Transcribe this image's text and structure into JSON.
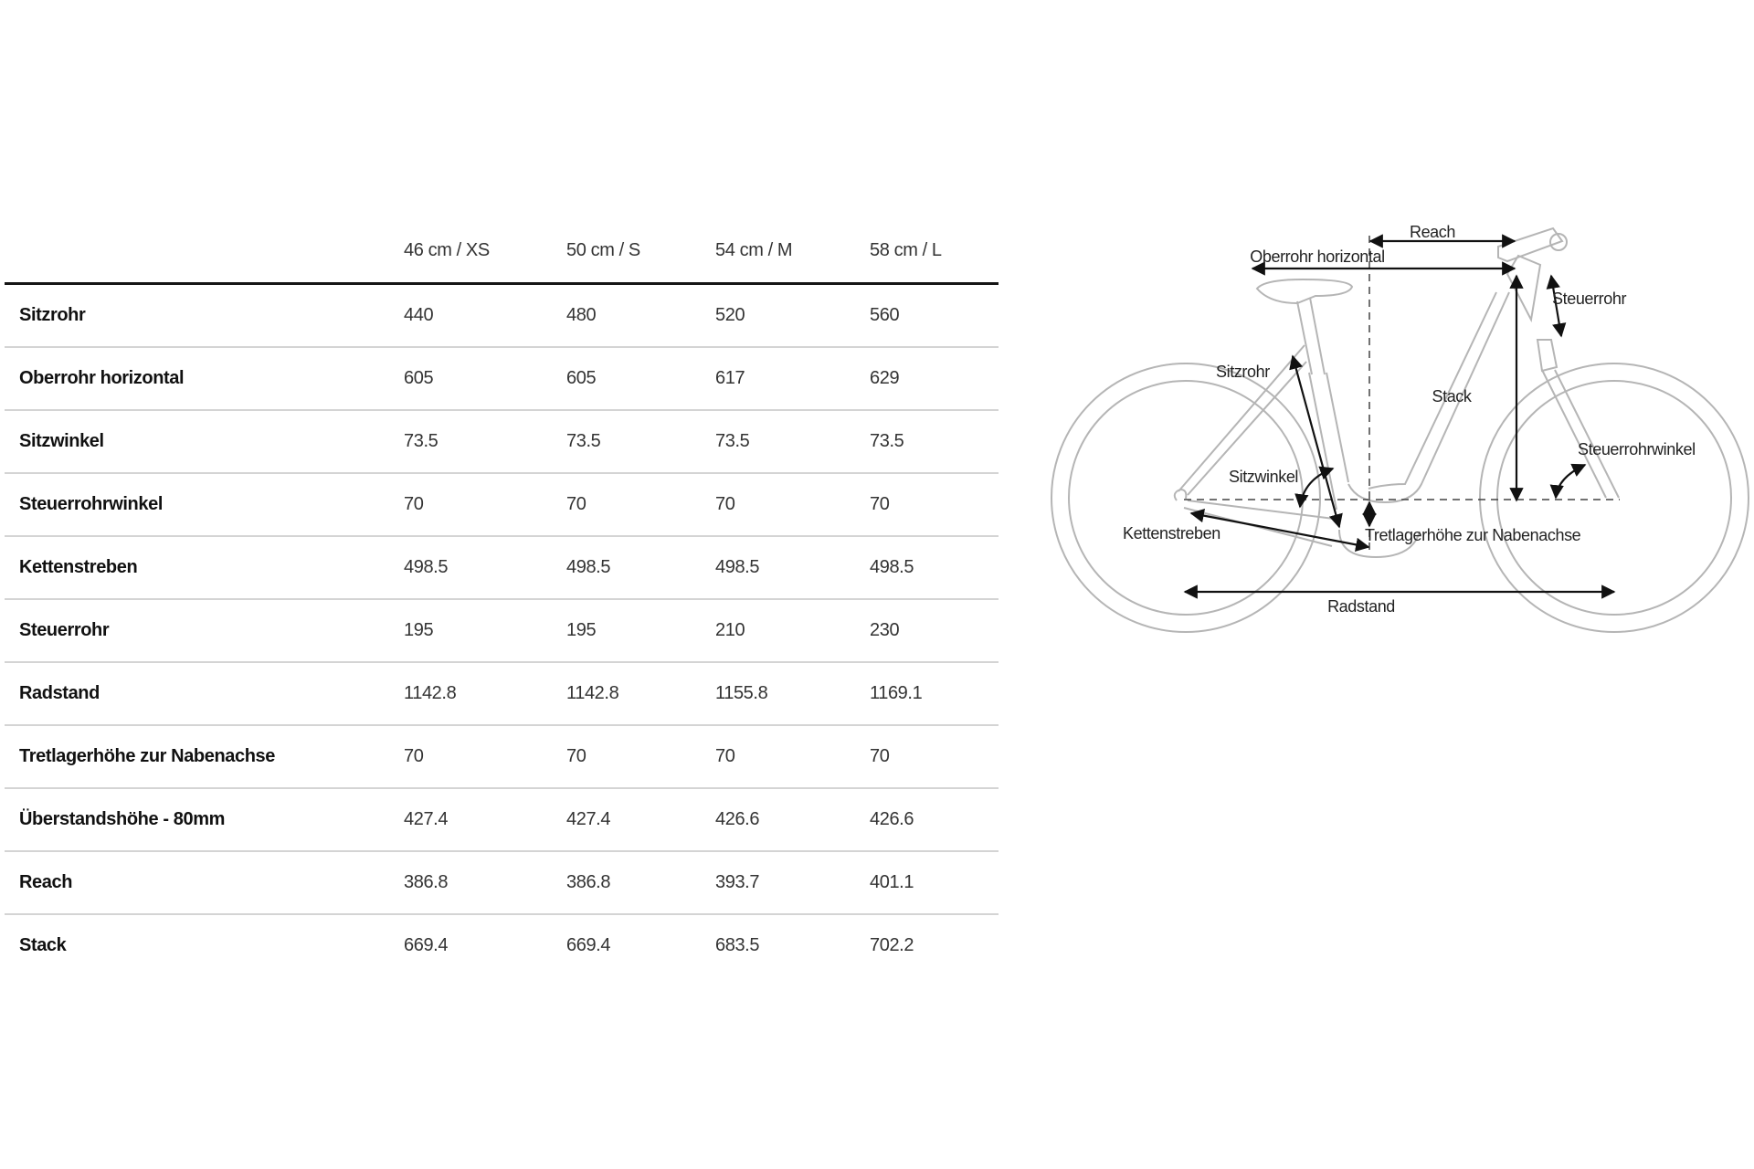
{
  "table": {
    "columns": [
      "",
      "46 cm / XS",
      "50 cm / S",
      "54 cm / M",
      "58 cm / L"
    ],
    "rows": [
      {
        "label": "Sitzrohr",
        "values": [
          "440",
          "480",
          "520",
          "560"
        ]
      },
      {
        "label": "Oberrohr horizontal",
        "values": [
          "605",
          "605",
          "617",
          "629"
        ]
      },
      {
        "label": "Sitzwinkel",
        "values": [
          "73.5",
          "73.5",
          "73.5",
          "73.5"
        ]
      },
      {
        "label": "Steuerrohrwinkel",
        "values": [
          "70",
          "70",
          "70",
          "70"
        ]
      },
      {
        "label": "Kettenstreben",
        "values": [
          "498.5",
          "498.5",
          "498.5",
          "498.5"
        ]
      },
      {
        "label": "Steuerrohr",
        "values": [
          "195",
          "195",
          "210",
          "230"
        ]
      },
      {
        "label": "Radstand",
        "values": [
          "1142.8",
          "1142.8",
          "1155.8",
          "1169.1"
        ]
      },
      {
        "label": "Tretlagerhöhe zur Nabenachse",
        "values": [
          "70",
          "70",
          "70",
          "70"
        ]
      },
      {
        "label": "Überstandshöhe - 80mm",
        "values": [
          "427.4",
          "427.4",
          "426.6",
          "426.6"
        ]
      },
      {
        "label": "Reach",
        "values": [
          "386.8",
          "386.8",
          "393.7",
          "401.1"
        ]
      },
      {
        "label": "Stack",
        "values": [
          "669.4",
          "669.4",
          "683.5",
          "702.2"
        ]
      }
    ]
  },
  "diagram": {
    "labels": {
      "reach": "Reach",
      "top_tube": "Oberrohr horizontal",
      "head_tube": "Steuerrohr",
      "seat_tube": "Sitzrohr",
      "stack": "Stack",
      "head_angle": "Steuerrohrwinkel",
      "seat_angle": "Sitzwinkel",
      "chainstays": "Kettenstreben",
      "bb_drop": "Tretlagerhöhe zur Nabenachse",
      "wheelbase": "Radstand"
    },
    "colors": {
      "frame": "#b5b5b5",
      "arrows": "#111111"
    }
  }
}
